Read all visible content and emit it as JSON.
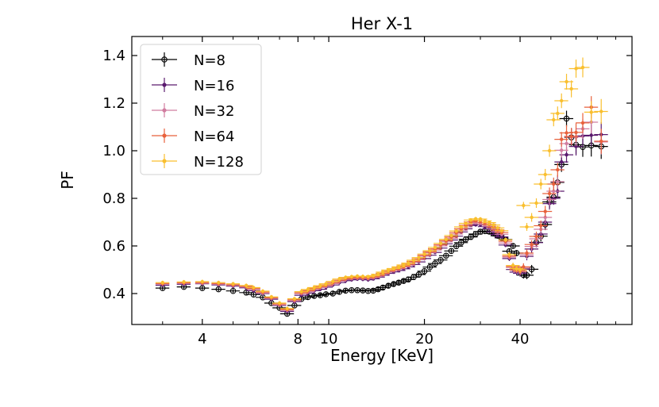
{
  "chart_data": {
    "type": "scatter",
    "title": "Her X-1",
    "xlabel": "Energy [KeV]",
    "ylabel": "PF",
    "xscale": "log",
    "xlim": [
      2.4,
      90
    ],
    "ylim": [
      0.27,
      1.48
    ],
    "grid": false,
    "legend_position": "top-left",
    "xticks": [
      {
        "value": 4,
        "label": "4"
      },
      {
        "value": 8,
        "label": "8"
      },
      {
        "value": 10,
        "label": "10"
      },
      {
        "value": 20,
        "label": "20"
      },
      {
        "value": 40,
        "label": "40"
      }
    ],
    "yticks": [
      {
        "value": 0.4,
        "label": "0.4"
      },
      {
        "value": 0.6,
        "label": "0.6"
      },
      {
        "value": 0.8,
        "label": "0.8"
      },
      {
        "value": 1.0,
        "label": "1.0"
      },
      {
        "value": 1.2,
        "label": "1.2"
      },
      {
        "value": 1.4,
        "label": "1.4"
      }
    ],
    "x": [
      3.0,
      3.5,
      4.0,
      4.5,
      5.0,
      5.5,
      5.8,
      6.2,
      6.6,
      7.0,
      7.4,
      7.8,
      8.2,
      8.6,
      9.0,
      9.4,
      9.8,
      10.3,
      10.8,
      11.3,
      11.8,
      12.3,
      12.8,
      13.3,
      13.8,
      14.3,
      14.8,
      15.4,
      16.0,
      16.6,
      17.2,
      17.8,
      18.5,
      19.2,
      20.0,
      20.8,
      21.6,
      22.5,
      23.4,
      24.3,
      25.2,
      26.1,
      27.0,
      28.0,
      29.0,
      30.0,
      31.0,
      32.0,
      33.0,
      34.0,
      35.0,
      36.0,
      37.0,
      38.0,
      39.0,
      40.0,
      41.0,
      42.0,
      43.5,
      45.0,
      46.5,
      48.0,
      49.5,
      51.0,
      52.5,
      54.0,
      56.0,
      58.0,
      60.0,
      63.0,
      67.0,
      72.0
    ],
    "series": [
      {
        "name": "N=8",
        "color": "#000000",
        "marker": "open-circle",
        "y": [
          0.423,
          0.428,
          0.423,
          0.418,
          0.411,
          0.404,
          0.396,
          0.384,
          0.36,
          0.34,
          0.315,
          0.35,
          0.377,
          0.385,
          0.39,
          0.393,
          0.397,
          0.4,
          0.407,
          0.412,
          0.414,
          0.414,
          0.413,
          0.411,
          0.412,
          0.418,
          0.425,
          0.433,
          0.44,
          0.446,
          0.453,
          0.459,
          0.469,
          0.48,
          0.494,
          0.511,
          0.526,
          0.541,
          0.559,
          0.579,
          0.599,
          0.614,
          0.628,
          0.638,
          0.65,
          0.66,
          0.662,
          0.66,
          0.652,
          0.643,
          0.634,
          0.627,
          0.578,
          0.6,
          0.57,
          0.5,
          0.478,
          0.477,
          0.502,
          0.615,
          0.641,
          0.69,
          0.785,
          0.805,
          0.867,
          0.942,
          1.135,
          1.056,
          1.025,
          1.016,
          1.022,
          1.018
        ]
      },
      {
        "name": "N=16",
        "color": "#5a1a6e",
        "marker": "filled-circle",
        "y": [
          0.435,
          0.439,
          0.441,
          0.436,
          0.431,
          0.424,
          0.412,
          0.4,
          0.376,
          0.35,
          0.325,
          0.366,
          0.393,
          0.402,
          0.412,
          0.418,
          0.427,
          0.436,
          0.446,
          0.454,
          0.458,
          0.461,
          0.46,
          0.458,
          0.462,
          0.469,
          0.477,
          0.485,
          0.491,
          0.497,
          0.504,
          0.512,
          0.522,
          0.533,
          0.547,
          0.561,
          0.573,
          0.591,
          0.609,
          0.625,
          0.641,
          0.659,
          0.672,
          0.686,
          0.689,
          0.689,
          0.681,
          0.673,
          0.659,
          0.648,
          0.638,
          0.604,
          0.547,
          0.501,
          0.49,
          0.485,
          0.502,
          0.556,
          0.587,
          0.614,
          0.65,
          0.7,
          0.778,
          0.8,
          0.83,
          0.953,
          0.983,
          1.06,
          1.018,
          1.062,
          1.065,
          1.068
        ]
      },
      {
        "name": "N=32",
        "color": "#d17da0",
        "marker": "filled-circle",
        "y": [
          0.44,
          0.443,
          0.443,
          0.439,
          0.434,
          0.428,
          0.418,
          0.402,
          0.38,
          0.352,
          0.33,
          0.37,
          0.4,
          0.408,
          0.418,
          0.425,
          0.432,
          0.442,
          0.452,
          0.46,
          0.463,
          0.465,
          0.464,
          0.463,
          0.467,
          0.473,
          0.482,
          0.491,
          0.497,
          0.504,
          0.512,
          0.519,
          0.531,
          0.542,
          0.557,
          0.571,
          0.583,
          0.6,
          0.617,
          0.632,
          0.65,
          0.666,
          0.68,
          0.693,
          0.698,
          0.697,
          0.69,
          0.683,
          0.671,
          0.66,
          0.649,
          0.612,
          0.553,
          0.51,
          0.498,
          0.491,
          0.507,
          0.563,
          0.598,
          0.63,
          0.67,
          0.72,
          0.795,
          0.83,
          0.87,
          1.002,
          1.03,
          1.058,
          1.058,
          1.092,
          1.12,
          1.037
        ]
      },
      {
        "name": "N=64",
        "color": "#e8613c",
        "marker": "filled-circle",
        "y": [
          0.442,
          0.445,
          0.446,
          0.442,
          0.437,
          0.43,
          0.421,
          0.406,
          0.382,
          0.356,
          0.333,
          0.374,
          0.403,
          0.412,
          0.421,
          0.429,
          0.436,
          0.446,
          0.456,
          0.463,
          0.466,
          0.468,
          0.467,
          0.466,
          0.47,
          0.476,
          0.485,
          0.494,
          0.5,
          0.507,
          0.515,
          0.523,
          0.535,
          0.546,
          0.561,
          0.575,
          0.588,
          0.605,
          0.622,
          0.638,
          0.656,
          0.672,
          0.687,
          0.701,
          0.706,
          0.705,
          0.697,
          0.69,
          0.679,
          0.667,
          0.656,
          0.62,
          0.558,
          0.513,
          0.5,
          0.494,
          0.512,
          0.57,
          0.606,
          0.64,
          0.685,
          0.745,
          0.82,
          0.86,
          0.92,
          1.048,
          1.075,
          1.06,
          1.077,
          1.117,
          1.183,
          1.04
        ]
      },
      {
        "name": "N=128",
        "color": "#f9bf2e",
        "marker": "filled-circle",
        "y": [
          0.446,
          0.449,
          0.45,
          0.446,
          0.441,
          0.434,
          0.425,
          0.41,
          0.386,
          0.36,
          0.337,
          0.378,
          0.408,
          0.417,
          0.425,
          0.433,
          0.441,
          0.451,
          0.461,
          0.468,
          0.471,
          0.473,
          0.472,
          0.471,
          0.475,
          0.481,
          0.49,
          0.499,
          0.505,
          0.512,
          0.52,
          0.528,
          0.54,
          0.551,
          0.566,
          0.58,
          0.594,
          0.611,
          0.628,
          0.644,
          0.663,
          0.68,
          0.695,
          0.709,
          0.714,
          0.713,
          0.705,
          0.698,
          0.688,
          0.676,
          0.664,
          0.626,
          0.564,
          0.518,
          0.505,
          0.5,
          0.77,
          0.68,
          0.72,
          0.78,
          0.86,
          0.9,
          1.0,
          1.13,
          1.157,
          1.21,
          1.29,
          1.26,
          1.345,
          1.35,
          1.162,
          1.165
        ]
      }
    ]
  }
}
